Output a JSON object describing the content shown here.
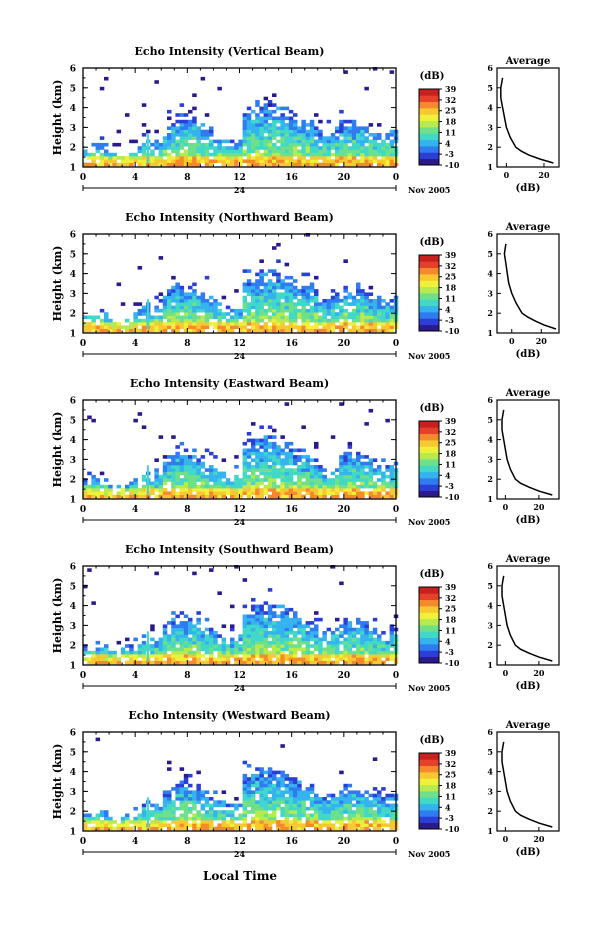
{
  "figure": {
    "xlabel": "Local Time",
    "date_label": "Nov 2005",
    "date_tick": "24",
    "ylabel": "Height (km)",
    "cbar_unit": "(dB)",
    "avg_title": "Average",
    "avg_xlabel": "(dB)"
  },
  "colorbar": {
    "ticks": [
      "39",
      "32",
      "25",
      "18",
      "11",
      "4",
      "-3",
      "-10"
    ],
    "colors": [
      "#2a1a8c",
      "#2b3fd6",
      "#2f7cf0",
      "#34b3ee",
      "#41d8c8",
      "#6fe08a",
      "#b6ea4f",
      "#eef03c",
      "#f7c832",
      "#f58a2c",
      "#e5412a",
      "#c8201f"
    ]
  },
  "chart_data": [
    {
      "type": "heatmap",
      "title": "Echo Intensity (Vertical Beam)",
      "x": {
        "label": "Local Time",
        "range": [
          0,
          24
        ],
        "ticks": [
          "0",
          "4",
          "8",
          "12",
          "16",
          "20",
          "0"
        ]
      },
      "y": {
        "label": "Height (km)",
        "range": [
          1,
          6
        ],
        "ticks": [
          "1",
          "2",
          "3",
          "4",
          "5",
          "6"
        ]
      },
      "color_range_dB": [
        -10,
        39
      ],
      "average_profile": {
        "title": "Average",
        "xlabel": "(dB)",
        "xlim": [
          -5,
          28
        ],
        "xticks": [
          "0",
          "20"
        ],
        "height_km": [
          1.2,
          1.4,
          1.6,
          1.8,
          2.0,
          2.5,
          3.0,
          3.5,
          4.0,
          4.5,
          5.0,
          5.5
        ],
        "dB": [
          25,
          18,
          12,
          8,
          5,
          2,
          0,
          -1,
          -2,
          -3,
          -3,
          -2
        ]
      }
    },
    {
      "type": "heatmap",
      "title": "Echo Intensity (Northward Beam)",
      "x": {
        "label": "Local Time",
        "range": [
          0,
          24
        ],
        "ticks": [
          "0",
          "4",
          "8",
          "12",
          "16",
          "20",
          "0"
        ]
      },
      "y": {
        "label": "Height (km)",
        "range": [
          1,
          6
        ],
        "ticks": [
          "1",
          "2",
          "3",
          "4",
          "5",
          "6"
        ]
      },
      "color_range_dB": [
        -10,
        39
      ],
      "average_profile": {
        "title": "Average",
        "xlabel": "(dB)",
        "xlim": [
          -10,
          32
        ],
        "xticks": [
          "0",
          "20"
        ],
        "height_km": [
          1.2,
          1.4,
          1.6,
          1.8,
          2.0,
          2.5,
          3.0,
          3.5,
          4.0,
          4.5,
          5.0,
          5.5
        ],
        "dB": [
          30,
          22,
          16,
          11,
          7,
          3,
          0,
          -2,
          -3,
          -4,
          -5,
          -4
        ]
      }
    },
    {
      "type": "heatmap",
      "title": "Echo Intensity (Eastward Beam)",
      "x": {
        "label": "Local Time",
        "range": [
          0,
          24
        ],
        "ticks": [
          "0",
          "4",
          "8",
          "12",
          "16",
          "20",
          "0"
        ]
      },
      "y": {
        "label": "Height (km)",
        "range": [
          1,
          6
        ],
        "ticks": [
          "1",
          "2",
          "3",
          "4",
          "5",
          "6"
        ]
      },
      "color_range_dB": [
        -10,
        39
      ],
      "average_profile": {
        "title": "Average",
        "xlabel": "(dB)",
        "xlim": [
          -5,
          32
        ],
        "xticks": [
          "0",
          "20"
        ],
        "height_km": [
          1.2,
          1.4,
          1.6,
          1.8,
          2.0,
          2.5,
          3.0,
          3.5,
          4.0,
          4.5,
          5.0,
          5.5
        ],
        "dB": [
          28,
          20,
          14,
          9,
          6,
          3,
          1,
          0,
          -1,
          -2,
          -2,
          -1
        ]
      }
    },
    {
      "type": "heatmap",
      "title": "Echo Intensity (Southward Beam)",
      "x": {
        "label": "Local Time",
        "range": [
          0,
          24
        ],
        "ticks": [
          "0",
          "4",
          "8",
          "12",
          "16",
          "20",
          "0"
        ]
      },
      "y": {
        "label": "Height (km)",
        "range": [
          1,
          6
        ],
        "ticks": [
          "1",
          "2",
          "3",
          "4",
          "5",
          "6"
        ]
      },
      "color_range_dB": [
        -10,
        39
      ],
      "average_profile": {
        "title": "Average",
        "xlabel": "(dB)",
        "xlim": [
          -5,
          32
        ],
        "xticks": [
          "0",
          "20"
        ],
        "height_km": [
          1.2,
          1.4,
          1.6,
          1.8,
          2.0,
          2.5,
          3.0,
          3.5,
          4.0,
          4.5,
          5.0,
          5.5
        ],
        "dB": [
          28,
          20,
          14,
          9,
          6,
          3,
          1,
          0,
          -1,
          -2,
          -2,
          -1
        ]
      }
    },
    {
      "type": "heatmap",
      "title": "Echo Intensity (Westward Beam)",
      "x": {
        "label": "Local Time",
        "range": [
          0,
          24
        ],
        "ticks": [
          "0",
          "4",
          "8",
          "12",
          "16",
          "20",
          "0"
        ]
      },
      "y": {
        "label": "Height (km)",
        "range": [
          1,
          6
        ],
        "ticks": [
          "1",
          "2",
          "3",
          "4",
          "5",
          "6"
        ]
      },
      "color_range_dB": [
        -10,
        39
      ],
      "average_profile": {
        "title": "Average",
        "xlabel": "(dB)",
        "xlim": [
          -5,
          32
        ],
        "xticks": [
          "0",
          "20"
        ],
        "height_km": [
          1.2,
          1.4,
          1.6,
          1.8,
          2.0,
          2.5,
          3.0,
          3.5,
          4.0,
          4.5,
          5.0,
          5.5
        ],
        "dB": [
          28,
          20,
          14,
          9,
          6,
          3,
          1,
          0,
          -1,
          -2,
          -2,
          -1
        ]
      }
    }
  ]
}
